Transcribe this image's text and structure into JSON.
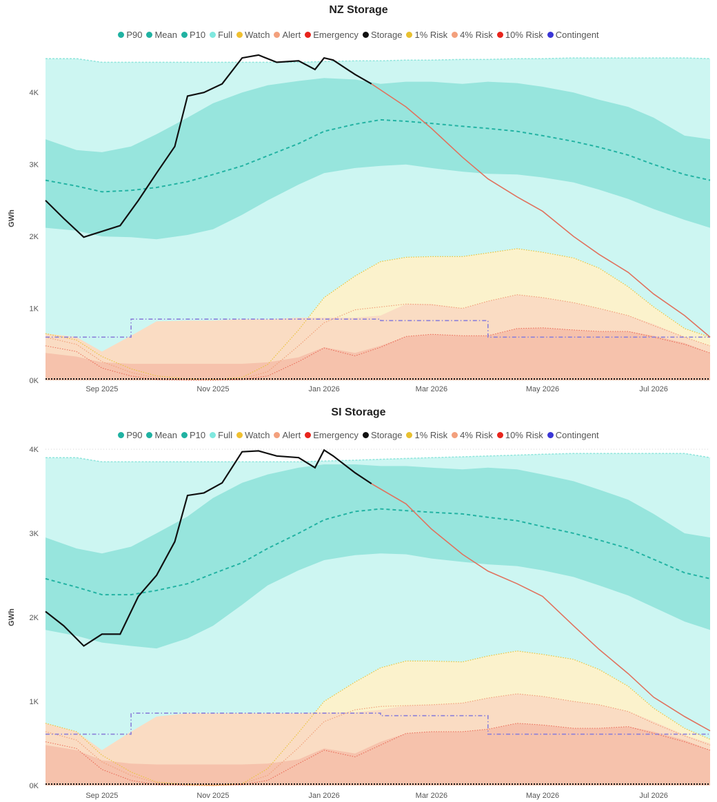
{
  "colors": {
    "full": "#cdf6f2",
    "p10p90": "#97e5dd",
    "mean": "#23b3a3",
    "watch": "#fbf2cc",
    "alert": "#fadcc3",
    "emergency": "#f6c2ac",
    "storage": "#111111",
    "projection": "#e0725e",
    "risk1": "#e8c33c",
    "risk4": "#f0a07a",
    "risk10": "#e23a28",
    "contingent": "#8a7fd9"
  },
  "legend_items": [
    {
      "label": "P90",
      "color": "#20b2a2"
    },
    {
      "label": "Mean",
      "color": "#20b2a2"
    },
    {
      "label": "P10",
      "color": "#20b2a2"
    },
    {
      "label": "Full",
      "color": "#7fe8df"
    },
    {
      "label": "Watch",
      "color": "#f0c030"
    },
    {
      "label": "Alert",
      "color": "#f3a07d"
    },
    {
      "label": "Emergency",
      "color": "#e8241c"
    },
    {
      "label": "Storage",
      "color": "#111111"
    },
    {
      "label": "1% Risk",
      "color": "#e8c030"
    },
    {
      "label": "4% Risk",
      "color": "#f3a07d"
    },
    {
      "label": "10% Risk",
      "color": "#e8241c"
    },
    {
      "label": "Contingent",
      "color": "#3a36d6"
    }
  ],
  "chart_data": [
    {
      "type": "area",
      "title": "NZ Storage",
      "ylabel": "GWh",
      "ylim": [
        0,
        4500
      ],
      "yticks": [
        0,
        1000,
        2000,
        3000,
        4000
      ],
      "ytick_labels": [
        "0K",
        "1K",
        "2K",
        "3K",
        "4K"
      ],
      "x_range": [
        "2025-08-15",
        "2026-08-15"
      ],
      "xticks": [
        {
          "date": "2025-09-15",
          "label": "Sep 2025"
        },
        {
          "date": "2025-11-15",
          "label": "Nov 2025"
        },
        {
          "date": "2026-01-15",
          "label": "Jan 2026"
        },
        {
          "date": "2026-03-15",
          "label": "Mar 2026"
        },
        {
          "date": "2026-05-15",
          "label": "May 2026"
        },
        {
          "date": "2026-07-15",
          "label": "Jul 2026"
        }
      ],
      "dates": [
        "2025-08-15",
        "2025-09-01",
        "2025-09-15",
        "2025-10-01",
        "2025-10-15",
        "2025-11-01",
        "2025-11-15",
        "2025-12-01",
        "2025-12-15",
        "2026-01-01",
        "2026-01-15",
        "2026-02-01",
        "2026-02-15",
        "2026-03-01",
        "2026-03-15",
        "2026-04-01",
        "2026-04-15",
        "2026-05-01",
        "2026-05-15",
        "2026-06-01",
        "2026-06-15",
        "2026-07-01",
        "2026-07-15",
        "2026-08-01",
        "2026-08-15"
      ],
      "series": [
        {
          "name": "Full",
          "values": [
            4470,
            4470,
            4420,
            4420,
            4420,
            4420,
            4420,
            4420,
            4420,
            4420,
            4430,
            4440,
            4440,
            4450,
            4450,
            4460,
            4460,
            4470,
            4470,
            4480,
            4480,
            4480,
            4480,
            4480,
            4470
          ]
        },
        {
          "name": "P90",
          "values": [
            3350,
            3200,
            3170,
            3250,
            3420,
            3650,
            3850,
            4000,
            4100,
            4160,
            4200,
            4180,
            4120,
            4150,
            4150,
            4120,
            4150,
            4130,
            4080,
            4000,
            3900,
            3800,
            3650,
            3400,
            3350
          ]
        },
        {
          "name": "Mean",
          "values": [
            2780,
            2700,
            2620,
            2640,
            2680,
            2760,
            2860,
            2980,
            3120,
            3290,
            3460,
            3560,
            3620,
            3600,
            3570,
            3530,
            3500,
            3460,
            3400,
            3320,
            3240,
            3130,
            3000,
            2860,
            2780
          ]
        },
        {
          "name": "P10",
          "values": [
            2120,
            2080,
            2000,
            1990,
            1960,
            2020,
            2100,
            2300,
            2500,
            2720,
            2880,
            2950,
            2980,
            3000,
            2950,
            2900,
            2870,
            2860,
            2820,
            2750,
            2650,
            2520,
            2380,
            2230,
            2120
          ]
        },
        {
          "name": "Watch",
          "values": [
            650,
            600,
            330,
            160,
            50,
            20,
            10,
            40,
            220,
            700,
            1150,
            1450,
            1650,
            1710,
            1720,
            1720,
            1770,
            1830,
            1780,
            1700,
            1560,
            1300,
            1020,
            720,
            600
          ]
        },
        {
          "name": "Alert",
          "values": [
            650,
            600,
            400,
            620,
            820,
            830,
            830,
            850,
            850,
            870,
            870,
            870,
            900,
            1060,
            1060,
            1000,
            1100,
            1190,
            1150,
            1080,
            1000,
            900,
            780,
            600,
            480
          ]
        },
        {
          "name": "Emergency",
          "values": [
            380,
            330,
            250,
            230,
            230,
            230,
            230,
            230,
            250,
            320,
            460,
            380,
            480,
            610,
            640,
            620,
            620,
            720,
            730,
            700,
            680,
            680,
            620,
            520,
            380
          ]
        },
        {
          "name": "1% Risk",
          "values": [
            650,
            560,
            330,
            160,
            60,
            20,
            10,
            40,
            220,
            700,
            1150,
            1450,
            1650,
            1710,
            1720,
            1720,
            1770,
            1830,
            1780,
            1700,
            1560,
            1300,
            1020,
            720,
            600
          ]
        },
        {
          "name": "4% Risk",
          "values": [
            600,
            500,
            260,
            110,
            30,
            10,
            5,
            20,
            120,
            480,
            800,
            980,
            1020,
            1060,
            1050,
            1000,
            1100,
            1190,
            1150,
            1080,
            1000,
            900,
            760,
            600,
            480
          ]
        },
        {
          "name": "10% Risk",
          "values": [
            480,
            400,
            170,
            60,
            10,
            0,
            0,
            10,
            60,
            260,
            450,
            340,
            460,
            610,
            640,
            620,
            620,
            720,
            730,
            700,
            680,
            680,
            600,
            500,
            380
          ]
        },
        {
          "name": "Contingent",
          "values": [
            600,
            600,
            600,
            850,
            850,
            850,
            850,
            850,
            850,
            850,
            850,
            850,
            830,
            830,
            830,
            830,
            600,
            600,
            600,
            600,
            600,
            600,
            600,
            600,
            600
          ]
        }
      ],
      "storage": {
        "dates": [
          "2025-08-15",
          "2025-08-25",
          "2025-09-05",
          "2025-09-15",
          "2025-09-25",
          "2025-10-05",
          "2025-10-15",
          "2025-10-25",
          "2025-11-01",
          "2025-11-10",
          "2025-11-20",
          "2025-12-01",
          "2025-12-10",
          "2025-12-20",
          "2026-01-01",
          "2026-01-10",
          "2026-01-15",
          "2026-01-20",
          "2026-02-01",
          "2026-02-10"
        ],
        "values": [
          2500,
          2250,
          1990,
          2070,
          2150,
          2500,
          2880,
          3250,
          3950,
          4000,
          4120,
          4480,
          4520,
          4420,
          4440,
          4320,
          4480,
          4450,
          4250,
          4120
        ]
      },
      "projection": {
        "dates": [
          "2026-02-10",
          "2026-03-01",
          "2026-03-15",
          "2026-04-01",
          "2026-04-15",
          "2026-05-01",
          "2026-05-15",
          "2026-06-01",
          "2026-06-15",
          "2026-07-01",
          "2026-07-15",
          "2026-08-01",
          "2026-08-15"
        ],
        "values": [
          4120,
          3800,
          3500,
          3100,
          2800,
          2550,
          2350,
          2000,
          1750,
          1500,
          1200,
          900,
          600
        ]
      }
    },
    {
      "type": "area",
      "title": "SI Storage",
      "ylabel": "GWh",
      "ylim": [
        0,
        4000
      ],
      "yticks": [
        0,
        1000,
        2000,
        3000,
        4000
      ],
      "ytick_labels": [
        "0K",
        "1K",
        "2K",
        "3K",
        "4K"
      ],
      "x_range": [
        "2025-08-15",
        "2026-08-15"
      ],
      "xticks": [
        {
          "date": "2025-09-15",
          "label": "Sep 2025"
        },
        {
          "date": "2025-11-15",
          "label": "Nov 2025"
        },
        {
          "date": "2026-01-15",
          "label": "Jan 2026"
        },
        {
          "date": "2026-03-15",
          "label": "Mar 2026"
        },
        {
          "date": "2026-05-15",
          "label": "May 2026"
        },
        {
          "date": "2026-07-15",
          "label": "Jul 2026"
        }
      ],
      "dates": [
        "2025-08-15",
        "2025-09-01",
        "2025-09-15",
        "2025-10-01",
        "2025-10-15",
        "2025-11-01",
        "2025-11-15",
        "2025-12-01",
        "2025-12-15",
        "2026-01-01",
        "2026-01-15",
        "2026-02-01",
        "2026-02-15",
        "2026-03-01",
        "2026-03-15",
        "2026-04-01",
        "2026-04-15",
        "2026-05-01",
        "2026-05-15",
        "2026-06-01",
        "2026-06-15",
        "2026-07-01",
        "2026-07-15",
        "2026-08-01",
        "2026-08-15"
      ],
      "series": [
        {
          "name": "Full",
          "values": [
            3900,
            3900,
            3850,
            3850,
            3850,
            3850,
            3850,
            3850,
            3850,
            3850,
            3860,
            3870,
            3880,
            3890,
            3900,
            3910,
            3920,
            3930,
            3940,
            3950,
            3950,
            3950,
            3950,
            3950,
            3900
          ]
        },
        {
          "name": "P90",
          "values": [
            2950,
            2820,
            2760,
            2840,
            3000,
            3200,
            3420,
            3600,
            3700,
            3780,
            3820,
            3820,
            3800,
            3800,
            3780,
            3760,
            3780,
            3760,
            3700,
            3620,
            3520,
            3400,
            3230,
            3000,
            2950
          ]
        },
        {
          "name": "Mean",
          "values": [
            2460,
            2360,
            2270,
            2270,
            2320,
            2400,
            2520,
            2650,
            2820,
            3000,
            3160,
            3260,
            3290,
            3270,
            3250,
            3230,
            3190,
            3150,
            3080,
            3000,
            2920,
            2820,
            2690,
            2530,
            2460
          ]
        },
        {
          "name": "P10",
          "values": [
            1850,
            1780,
            1700,
            1660,
            1630,
            1750,
            1900,
            2150,
            2380,
            2560,
            2680,
            2740,
            2760,
            2750,
            2700,
            2660,
            2630,
            2610,
            2560,
            2480,
            2380,
            2260,
            2120,
            1950,
            1850
          ]
        },
        {
          "name": "Watch",
          "values": [
            740,
            640,
            360,
            160,
            40,
            10,
            0,
            20,
            200,
            630,
            1000,
            1230,
            1400,
            1480,
            1480,
            1470,
            1540,
            1600,
            1560,
            1500,
            1380,
            1180,
            920,
            680,
            550
          ]
        },
        {
          "name": "Alert",
          "values": [
            740,
            640,
            420,
            640,
            820,
            860,
            860,
            860,
            860,
            860,
            870,
            870,
            900,
            950,
            960,
            980,
            1040,
            1090,
            1060,
            1000,
            960,
            880,
            760,
            600,
            500
          ]
        },
        {
          "name": "Emergency",
          "values": [
            480,
            420,
            300,
            260,
            250,
            250,
            250,
            250,
            260,
            310,
            440,
            380,
            520,
            620,
            640,
            640,
            670,
            740,
            720,
            680,
            680,
            700,
            640,
            540,
            420
          ]
        },
        {
          "name": "1% Risk",
          "values": [
            740,
            640,
            360,
            160,
            40,
            10,
            0,
            20,
            200,
            630,
            1000,
            1230,
            1400,
            1480,
            1480,
            1470,
            1540,
            1600,
            1560,
            1500,
            1380,
            1180,
            920,
            680,
            550
          ]
        },
        {
          "name": "4% Risk",
          "values": [
            640,
            540,
            280,
            120,
            30,
            10,
            0,
            20,
            120,
            450,
            760,
            900,
            940,
            950,
            960,
            980,
            1040,
            1090,
            1060,
            1000,
            960,
            880,
            740,
            590,
            480
          ]
        },
        {
          "name": "10% Risk",
          "values": [
            520,
            440,
            190,
            60,
            10,
            0,
            0,
            10,
            60,
            260,
            420,
            340,
            480,
            620,
            640,
            640,
            670,
            740,
            720,
            680,
            680,
            700,
            620,
            520,
            420
          ]
        },
        {
          "name": "Contingent",
          "values": [
            610,
            610,
            610,
            860,
            860,
            860,
            860,
            860,
            860,
            860,
            860,
            860,
            830,
            830,
            830,
            830,
            610,
            610,
            610,
            610,
            610,
            610,
            610,
            610,
            610
          ]
        }
      ],
      "storage": {
        "dates": [
          "2025-08-15",
          "2025-08-25",
          "2025-09-05",
          "2025-09-15",
          "2025-09-25",
          "2025-10-05",
          "2025-10-15",
          "2025-10-25",
          "2025-11-01",
          "2025-11-10",
          "2025-11-20",
          "2025-12-01",
          "2025-12-10",
          "2025-12-20",
          "2026-01-01",
          "2026-01-10",
          "2026-01-15",
          "2026-01-20",
          "2026-02-01",
          "2026-02-10"
        ],
        "values": [
          2070,
          1900,
          1660,
          1800,
          1800,
          2250,
          2500,
          2900,
          3450,
          3480,
          3600,
          3970,
          3980,
          3920,
          3900,
          3780,
          3990,
          3920,
          3720,
          3590
        ]
      },
      "projection": {
        "dates": [
          "2026-02-10",
          "2026-03-01",
          "2026-03-15",
          "2026-04-01",
          "2026-04-15",
          "2026-05-01",
          "2026-05-15",
          "2026-06-01",
          "2026-06-15",
          "2026-07-01",
          "2026-07-15",
          "2026-08-01",
          "2026-08-15"
        ],
        "values": [
          3590,
          3350,
          3050,
          2750,
          2550,
          2400,
          2250,
          1900,
          1620,
          1330,
          1050,
          820,
          650
        ]
      }
    }
  ]
}
